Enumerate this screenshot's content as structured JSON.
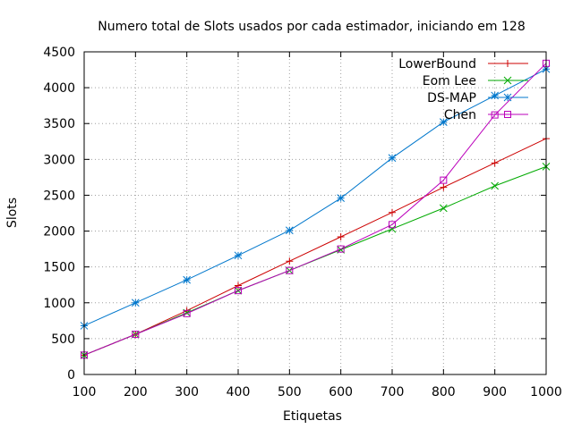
{
  "chart_data": {
    "type": "line",
    "title": "Numero total de Slots usados por cada estimador, iniciando em 128",
    "xlabel": "Etiquetas",
    "ylabel": "Slots",
    "xlim": [
      100,
      1000
    ],
    "ylim": [
      0,
      4500
    ],
    "x": [
      100,
      200,
      300,
      400,
      500,
      600,
      700,
      800,
      900,
      1000
    ],
    "x_ticks": [
      "100",
      "200",
      "300",
      "400",
      "500",
      "600",
      "700",
      "800",
      "900",
      "1000"
    ],
    "y_ticks": [
      "0",
      "500",
      "1000",
      "1500",
      "2000",
      "2500",
      "3000",
      "3500",
      "4000",
      "4500"
    ],
    "grid": true,
    "legend_position": "top-right",
    "series": [
      {
        "name": "LowerBound",
        "color": "#cc0000",
        "marker": "plus",
        "values": [
          270,
          560,
          890,
          1240,
          1580,
          1920,
          2260,
          2610,
          2950,
          3290
        ]
      },
      {
        "name": "Eom Lee",
        "color": "#00aa00",
        "marker": "cross",
        "values": [
          270,
          560,
          860,
          1170,
          1450,
          1740,
          2030,
          2320,
          2630,
          2900
        ]
      },
      {
        "name": "DS-MAP",
        "color": "#0077cc",
        "marker": "star",
        "values": [
          680,
          1000,
          1320,
          1660,
          2010,
          2460,
          3020,
          3520,
          3890,
          4260
        ]
      },
      {
        "name": "Chen",
        "color": "#bb00bb",
        "marker": "square",
        "values": [
          270,
          560,
          850,
          1170,
          1450,
          1750,
          2090,
          2710,
          3620,
          4340
        ]
      }
    ]
  }
}
